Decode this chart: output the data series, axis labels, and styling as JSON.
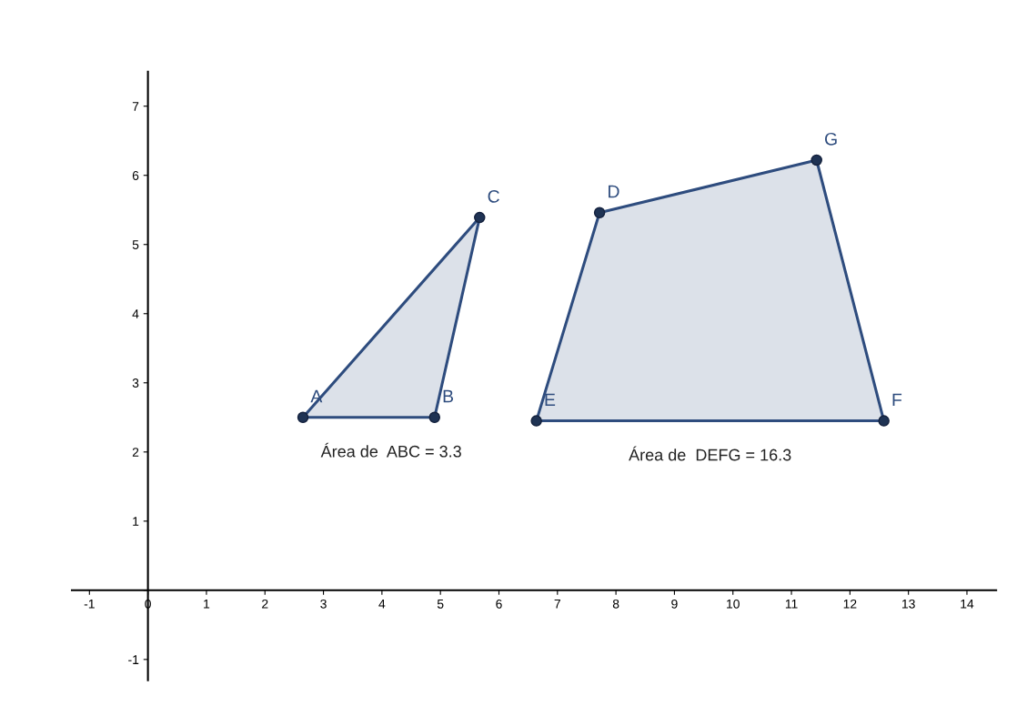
{
  "chart_data": {
    "type": "area",
    "series": [
      {
        "color": "#2e4c7e",
        "x": [
          2.65,
          4.9,
          5.67
        ],
        "values": [
          2.5,
          2.5,
          5.39
        ]
      },
      {
        "color": "#2e4c7e",
        "x": [
          6.64,
          12.58,
          11.43,
          7.72
        ],
        "values": [
          2.45,
          2.45,
          6.22,
          5.46
        ]
      }
    ],
    "annotations": [
      {
        "text": "A",
        "x": 2.65,
        "y": 2.5
      },
      {
        "text": "B",
        "x": 4.9,
        "y": 2.5
      },
      {
        "text": "C",
        "x": 5.67,
        "y": 5.39
      },
      {
        "text": "E",
        "x": 6.64,
        "y": 2.45
      },
      {
        "text": "F",
        "x": 12.58,
        "y": 2.45
      },
      {
        "text": "G",
        "x": 11.43,
        "y": 6.22
      },
      {
        "text": "D",
        "x": 7.72,
        "y": 5.46
      },
      "Área de  ABC = 3.3",
      "Área de  DEFG = 16.3"
    ],
    "marker": "circle",
    "grid": false,
    "legend": false,
    "xlim": [
      -1.3,
      14.5
    ],
    "ylim": [
      -1.3,
      7.5
    ],
    "xticks": [
      -1,
      0,
      1,
      2,
      3,
      4,
      5,
      6,
      7,
      8,
      9,
      10,
      11,
      12,
      13,
      14
    ],
    "yticks": [
      -1,
      {
        "value": 0,
        "label": null
      },
      1,
      2,
      3,
      4,
      5,
      6,
      7
    ]
  }
}
